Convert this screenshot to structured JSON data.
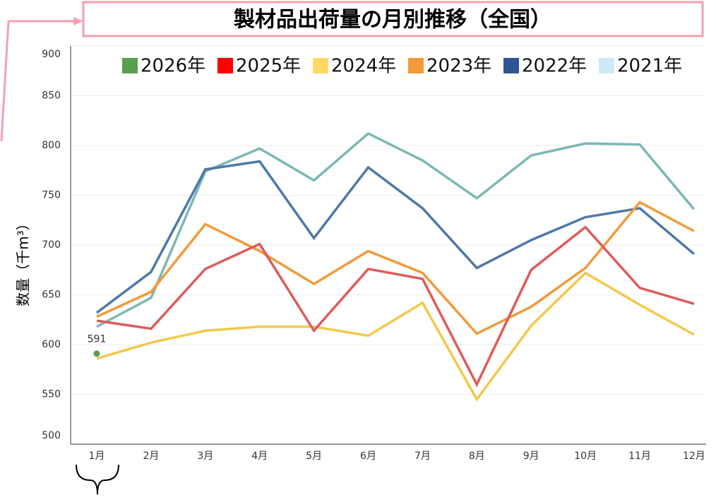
{
  "chart_data": {
    "type": "line",
    "title": "製材品出荷量の月別推移（全国）",
    "y_label": "数量（千m³）",
    "categories": [
      "1月",
      "2月",
      "3月",
      "4月",
      "5月",
      "6月",
      "7月",
      "8月",
      "9月",
      "10月",
      "11月",
      "12月"
    ],
    "series": [
      {
        "name": "2026年",
        "color": "#5a9f4e",
        "values": [
          591,
          null,
          null,
          null,
          null,
          null,
          null,
          null,
          null,
          null,
          null,
          null
        ]
      },
      {
        "name": "2025年",
        "color": "#e05a5a",
        "values": [
          624,
          616,
          676,
          701,
          614,
          676,
          666,
          560,
          675,
          718,
          657,
          641
        ]
      },
      {
        "name": "2024年",
        "color": "#f2c94c",
        "values": [
          586,
          602,
          614,
          618,
          618,
          609,
          642,
          545,
          619,
          672,
          640,
          610
        ]
      },
      {
        "name": "2023年",
        "color": "#f39a3a",
        "values": [
          628,
          653,
          721,
          694,
          661,
          694,
          672,
          611,
          638,
          677,
          743,
          714
        ]
      },
      {
        "name": "2022年",
        "color": "#4e79a7",
        "values": [
          632,
          673,
          776,
          784,
          707,
          778,
          737,
          677,
          705,
          728,
          737,
          691
        ]
      },
      {
        "name": "2021年",
        "color": "#7cb8b4",
        "legend_color": "#cfe8f8",
        "values": [
          618,
          647,
          774,
          797,
          765,
          812,
          785,
          747,
          790,
          802,
          801,
          736
        ]
      }
    ],
    "legend_colors": {
      "2026年": "#5a9f4e",
      "2025年": "#ff0000",
      "2024年": "#ffd966",
      "2023年": "#f39a3a",
      "2022年": "#2f5597"
    },
    "ylim": [
      500,
      900
    ],
    "yticks": [
      500,
      550,
      600,
      650,
      700,
      750,
      800,
      850,
      900
    ],
    "grid": true,
    "legend": "top"
  }
}
